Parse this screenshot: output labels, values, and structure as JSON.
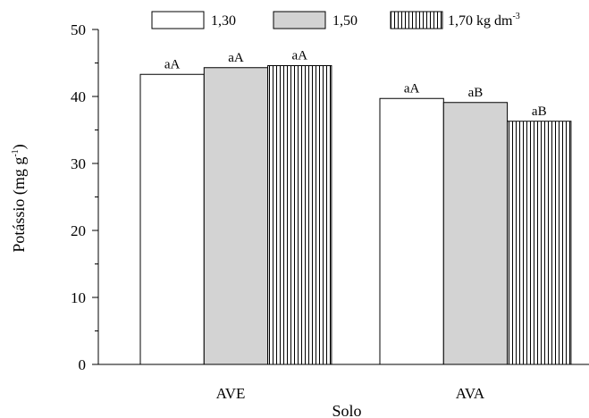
{
  "chart_data": {
    "type": "bar",
    "xlabel": "Solo",
    "ylabel": {
      "main": "Potássio (mg g",
      "sup": "-1",
      "close": ")"
    },
    "ylim": [
      0,
      50
    ],
    "yticks": [
      "0",
      "10",
      "20",
      "30",
      "40",
      "50"
    ],
    "categories": [
      "AVE",
      "AVA"
    ],
    "legend_placement": "top",
    "series": [
      {
        "name": "1,30",
        "fill": "white",
        "values": [
          43.3,
          39.7
        ],
        "labels": [
          "aA",
          "aA"
        ]
      },
      {
        "name": "1,50",
        "fill": "gray",
        "values": [
          44.3,
          39.1
        ],
        "labels": [
          "aA",
          "aB"
        ]
      },
      {
        "name": "1,70 kg dm",
        "name_sup": "-3",
        "fill": "vertical-lines",
        "values": [
          44.6,
          36.3
        ],
        "labels": [
          "aA",
          "aB"
        ]
      }
    ],
    "colors": {
      "gray_fill": "#d3d3d3",
      "stroke": "#000000",
      "background": "#ffffff"
    }
  }
}
